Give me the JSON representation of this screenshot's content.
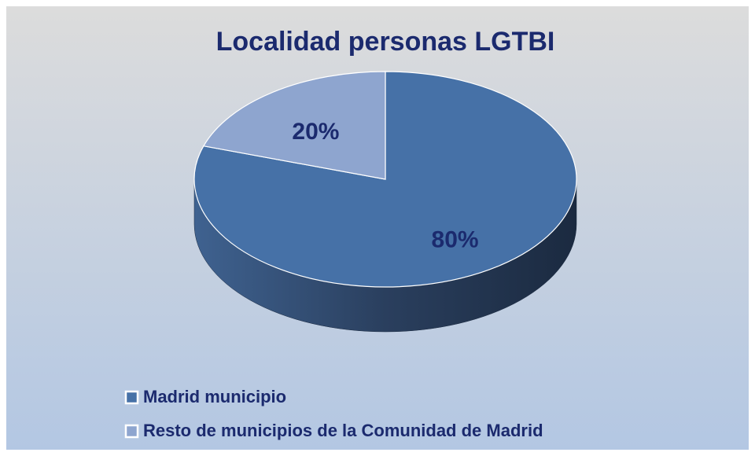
{
  "chart_data": {
    "type": "pie",
    "title": "Localidad personas LGTBI",
    "categories": [
      "Madrid municipio",
      "Resto de municipios de la Comunidad de Madrid"
    ],
    "values": [
      80,
      20
    ],
    "value_labels": [
      "80%",
      "20%"
    ],
    "colors": [
      "#4671a7",
      "#8ea5cf"
    ],
    "legend": "bottom-left"
  }
}
